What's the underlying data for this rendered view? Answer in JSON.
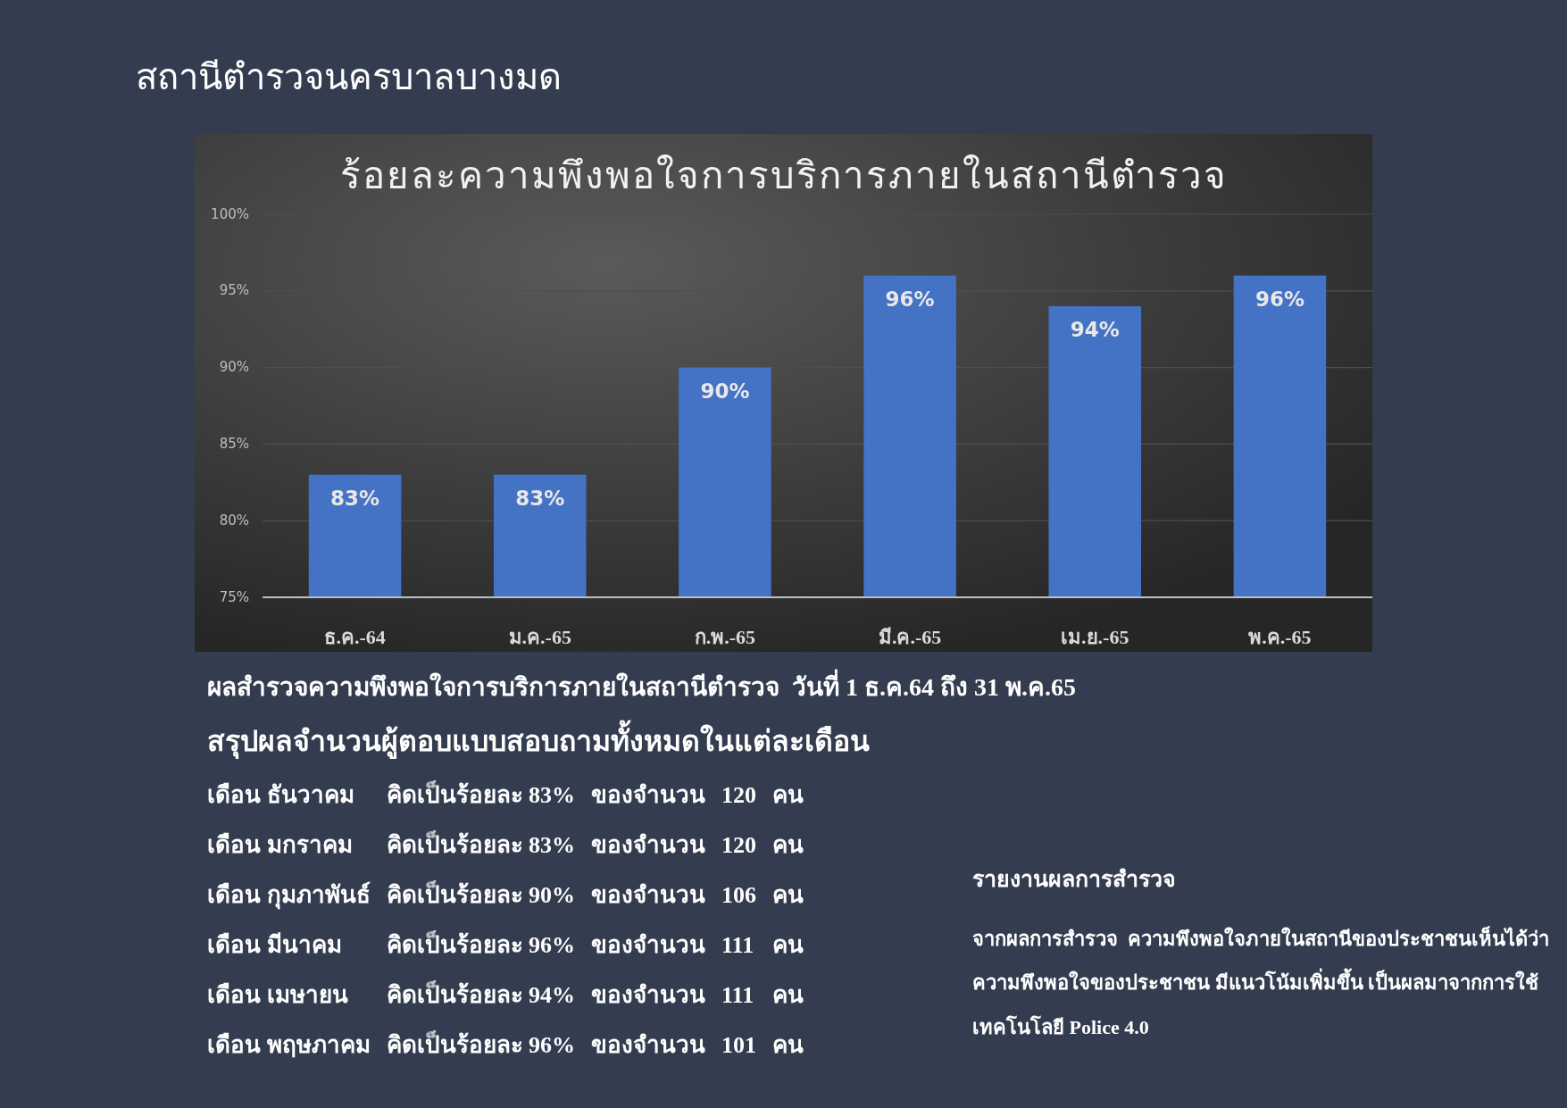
{
  "chart_data": {
    "type": "bar",
    "title": "ร้อยละความพึงพอใจการบริการภายในสถานีตำรวจ",
    "categories": [
      "ธ.ค.-64",
      "ม.ค.-65",
      "ก.พ.-65",
      "มี.ค.-65",
      "เม.ย.-65",
      "พ.ค.-65"
    ],
    "values": [
      83,
      83,
      90,
      96,
      94,
      96
    ],
    "value_labels": [
      "83%",
      "83%",
      "90%",
      "96%",
      "94%",
      "96%"
    ],
    "color": "#4472c4",
    "ylim": [
      75,
      100
    ],
    "yticks": [
      {
        "value": 75,
        "label": "75%"
      },
      {
        "value": 80,
        "label": "80%"
      },
      {
        "value": 85,
        "label": "85%"
      },
      {
        "value": 90,
        "label": "90%"
      },
      {
        "value": 95,
        "label": "95%"
      },
      {
        "value": 100,
        "label": "100%"
      }
    ],
    "grid": "y",
    "annotations": [
      "สถานีตำรวจนครบาลบางมด",
      "ผลสำรวจความพึงพอใจการบริการภายในสถานีตำรวจ  วันที่ 1 ธ.ค.64 ถึง 31 พ.ค.65",
      "สรุปผลจำนวนผู้ตอบแบบสอบถามทั้งหมดในแต่ละเดือน",
      "เดือน ธันวาคม  คิดเป็นร้อยละ 83%  ของจำนวน  120  คน",
      "เดือน มกราคม  คิดเป็นร้อยละ 83%  ของจำนวน  120  คน",
      "เดือน กุมภาพันธ์  คิดเป็นร้อยละ 90%  ของจำนวน  106  คน",
      "เดือน มีนาคม  คิดเป็นร้อยละ 96%  ของจำนวน  111  คน",
      "เดือน เมษายน  คิดเป็นร้อยละ 94%  ของจำนวน  111  คน",
      "เดือน พฤษภาคม  คิดเป็นร้อยละ 96%  ของจำนวน  101  คน",
      "รายงานผลการสำรวจ",
      "จากผลการสำรวจ  ความพึงพอใจภายในสถานีของประชาชนเห็นได้ว่า",
      "ความพึงพอใจของประชาชน มีแนวโน้มเพิ่มขึ้น เป็นผลมาจากการใช้",
      "เทคโนโลยี Police 4.0"
    ]
  }
}
